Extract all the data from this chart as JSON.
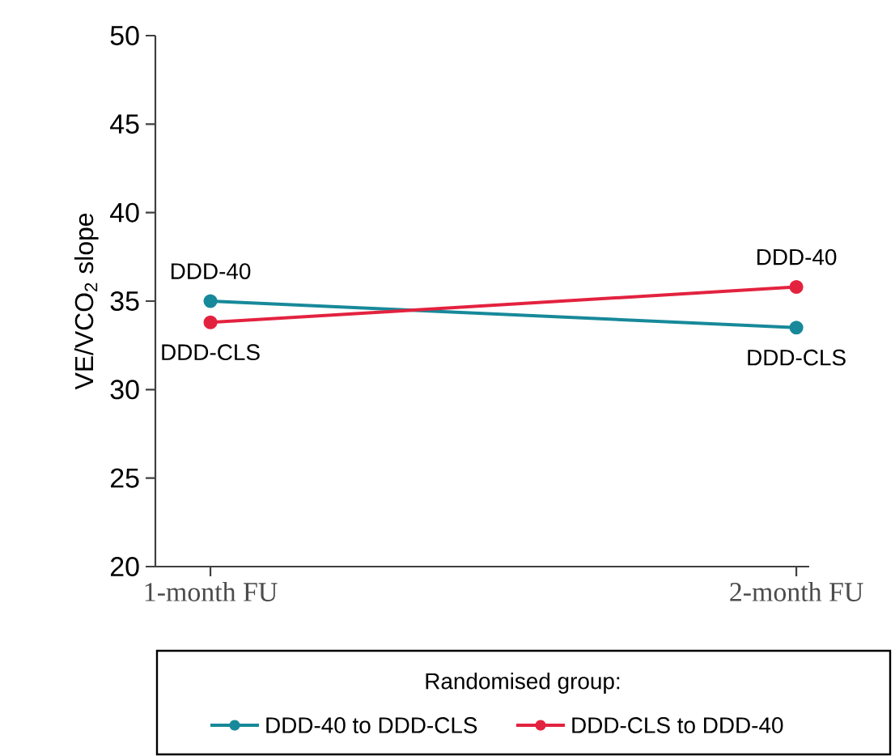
{
  "chart_data": {
    "type": "line",
    "ylabel": "VE/VCO$_{2}$ slope",
    "categories": [
      "1-month FU",
      "2-month FU"
    ],
    "series": [
      {
        "name": "DDD-40 to DDD-CLS",
        "color": "#17899a",
        "values": [
          35.0,
          33.5
        ]
      },
      {
        "name": "DDD-CLS to DDD-40",
        "color": "#e3223f",
        "values": [
          33.8,
          35.8
        ]
      }
    ],
    "ylim": [
      20,
      50
    ],
    "yticks": [
      20,
      25,
      30,
      35,
      40,
      45,
      50
    ],
    "marker": "circle",
    "legend": "bottom",
    "legend_title": "Randomised group:",
    "annotations": [
      "DDD-40",
      "DDD-CLS",
      "DDD-40",
      "DDD-CLS"
    ]
  }
}
